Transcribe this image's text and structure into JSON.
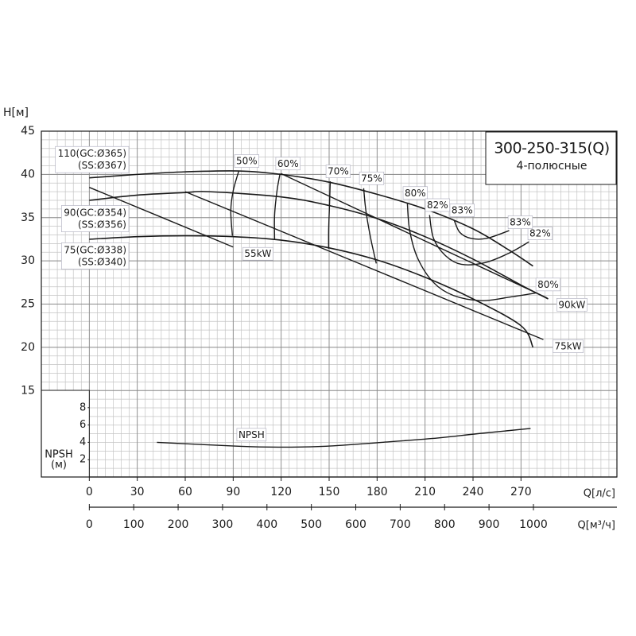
{
  "chart_data": {
    "type": "pump_curve",
    "title": "300-250-315(Q)",
    "subtitle": "4-полюсные",
    "ylabel": "H[м]",
    "xlabel": "Q[л/с]",
    "x2label": "Q[м³/ч]",
    "y2label": [
      "NPSH",
      "(м)"
    ],
    "xlim": [
      -30,
      330
    ],
    "xticks": [
      0,
      30,
      60,
      90,
      120,
      150,
      180,
      210,
      240,
      270
    ],
    "x2lim": [
      -108,
      1188
    ],
    "x2ticks": [
      0,
      100,
      200,
      300,
      400,
      500,
      600,
      700,
      800,
      900,
      1000
    ],
    "ylim": [
      5,
      45
    ],
    "yticks": [
      15,
      20,
      25,
      30,
      35,
      40,
      45
    ],
    "y2lim": [
      0,
      10
    ],
    "y2ticks": [
      2,
      4,
      6,
      8
    ],
    "grid": true,
    "minor_grid": {
      "x": 5,
      "y": 1
    },
    "color": "#1a1a1a",
    "impellers": [
      {
        "label": [
          "110(GC:Ø365)",
          "(SS:Ø367)"
        ],
        "q": [
          0,
          30,
          60,
          93.5,
          120,
          150,
          180,
          210,
          240,
          262,
          277.5
        ],
        "values": [
          39.6,
          40.0,
          40.3,
          40.4,
          40.0,
          39.1,
          37.7,
          36.0,
          33.7,
          31.3,
          29.4
        ]
      },
      {
        "label": [
          "90(GC:Ø354)",
          "(SS:Ø356)"
        ],
        "q": [
          0,
          30,
          60,
          75,
          120,
          150,
          180,
          210,
          240,
          270,
          287
        ],
        "values": [
          37.0,
          37.6,
          37.9,
          38.0,
          37.4,
          36.4,
          34.9,
          32.8,
          30.2,
          27.2,
          25.6
        ]
      },
      {
        "label": [
          "75(GC:Ø338)",
          "(SS:Ø340)"
        ],
        "q": [
          0,
          30,
          60,
          90,
          120,
          150,
          180,
          210,
          240,
          270,
          277.5
        ],
        "values": [
          32.5,
          32.8,
          32.9,
          32.8,
          32.4,
          31.5,
          30.1,
          28.1,
          25.6,
          22.5,
          20.0
        ]
      }
    ],
    "power": [
      {
        "name": "55kW",
        "q": [
          0,
          90
        ],
        "values": [
          38.5,
          31.6
        ]
      },
      {
        "name": "90kW",
        "q": [
          119.8,
          286.4
        ],
        "values": [
          40.1,
          25.7
        ]
      },
      {
        "name": "75kW",
        "q": [
          60,
          284
        ],
        "values": [
          38.0,
          20.9
        ]
      }
    ],
    "efficiency": [
      {
        "name": "50%",
        "q": [
          93.5,
          90,
          88.5,
          89.5
        ],
        "values": [
          40.4,
          38.1,
          35.8,
          32.9
        ]
      },
      {
        "name": "60%",
        "q": [
          119.3,
          117.4,
          115.9,
          115.9
        ],
        "values": [
          40.1,
          38.1,
          35.3,
          32.4
        ]
      },
      {
        "name": "70%",
        "q": [
          150.7,
          150.2,
          149.7,
          149.7
        ],
        "values": [
          39.2,
          36.3,
          33.5,
          31.4
        ]
      },
      {
        "name": "75%",
        "q": [
          171.6,
          173,
          176,
          179.5
        ],
        "values": [
          38.4,
          35.8,
          32.6,
          29.7
        ]
      },
      {
        "name": "80%",
        "q": [
          198.9,
          200.4,
          205.4,
          215.3,
          227.7,
          245.2,
          262.6,
          280
        ],
        "values": [
          36.7,
          33.5,
          30.3,
          27.5,
          26.0,
          25.4,
          25.8,
          26.3
        ]
      },
      {
        "name": "82%",
        "q": [
          212.8,
          215.3,
          222.8,
          232.7,
          247.6,
          262.6,
          275
        ],
        "values": [
          35.3,
          32.6,
          30.6,
          29.6,
          29.8,
          30.9,
          32.2
        ]
      },
      {
        "name": "83%",
        "q": [
          228.2,
          231.7,
          238.7,
          248.6,
          262.6
        ],
        "values": [
          34.7,
          33.3,
          32.6,
          32.6,
          33.5
        ]
      }
    ],
    "npsh": {
      "name": "NPSH",
      "axis": "y2",
      "q": [
        42.3,
        93.5,
        118,
        148,
        183,
        218,
        243,
        276
      ],
      "values": [
        4.0,
        3.55,
        3.45,
        3.55,
        4.0,
        4.5,
        5.0,
        5.6
      ]
    }
  }
}
